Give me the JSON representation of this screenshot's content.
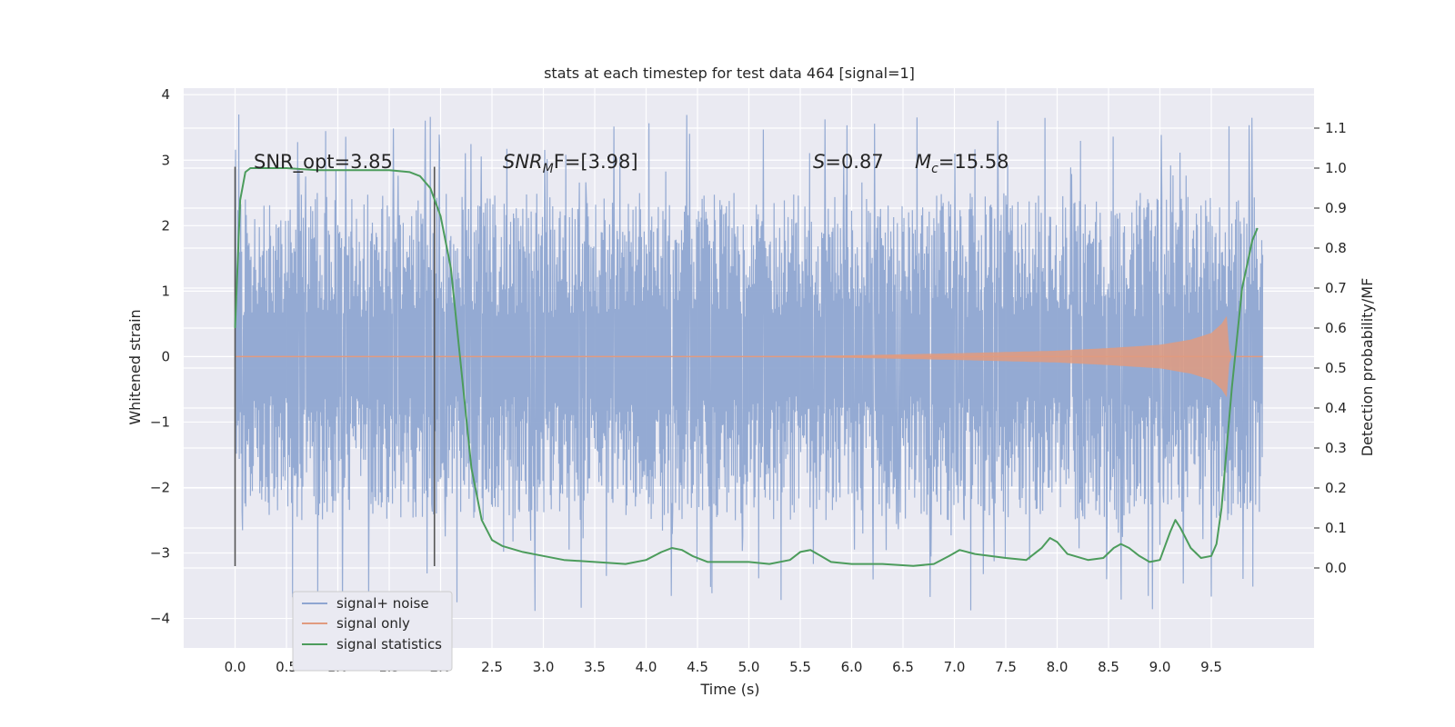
{
  "chart_data": {
    "type": "line",
    "title": "stats at each timestep for test data 464 [signal=1]",
    "xlabel": "Time (s)",
    "ylabel": "Whitened strain",
    "ylabel_right": "Detection probability/MF",
    "xlim": [
      -0.5,
      10.5
    ],
    "ylim": [
      -4.45,
      4.1
    ],
    "ylim_right": [
      -0.2,
      1.2
    ],
    "x_ticks": [
      "0.0",
      "0.5",
      "1.0",
      "1.5",
      "2.0",
      "2.5",
      "3.0",
      "3.5",
      "4.0",
      "4.5",
      "5.0",
      "5.5",
      "6.0",
      "6.5",
      "7.0",
      "7.5",
      "8.0",
      "8.5",
      "9.0",
      "9.5"
    ],
    "y_ticks": [
      "4",
      "3",
      "2",
      "1",
      "0",
      "−1",
      "−2",
      "−3",
      "−4"
    ],
    "y_ticks_right": [
      "1.1",
      "1.0",
      "0.9",
      "0.8",
      "0.7",
      "0.6",
      "0.5",
      "0.4",
      "0.3",
      "0.2",
      "0.1",
      "0.0"
    ],
    "grid": true,
    "legend_position": "bottom-left",
    "annotations": {
      "snr_opt": "SNR_opt=3.85",
      "snr_mf_main": "SNR",
      "snr_mf_sub": "M",
      "snr_mf_rest": "F=[3.98]",
      "s_main": "S",
      "s_rest": "=0.87",
      "mc_main": "M",
      "mc_sub": "c",
      "mc_rest": "=15.58"
    },
    "vertical_lines_x": [
      0.0,
      1.94
    ],
    "series": [
      {
        "name": "signal+ noise",
        "color": "#8fa6d1",
        "x_range": [
          0.0,
          10.0
        ],
        "envelope_top_approx": 2.6,
        "envelope_bottom_approx": -2.2,
        "peak_max_approx": 3.7,
        "peak_min_approx": -3.9
      },
      {
        "name": "signal only",
        "color": "#e19b7f",
        "x": [
          0.0,
          5.0,
          6.0,
          7.0,
          8.0,
          8.5,
          9.0,
          9.3,
          9.5,
          9.6,
          9.65,
          9.68,
          10.0
        ],
        "amplitude": [
          0.0,
          0.0,
          0.02,
          0.05,
          0.09,
          0.13,
          0.18,
          0.26,
          0.36,
          0.5,
          0.62,
          0.0,
          0.0
        ]
      },
      {
        "name": "signal statistics",
        "color": "#4c9c5c",
        "x": [
          0.0,
          0.05,
          0.1,
          0.15,
          0.2,
          0.3,
          0.5,
          0.8,
          1.2,
          1.5,
          1.7,
          1.8,
          1.9,
          2.0,
          2.1,
          2.2,
          2.3,
          2.4,
          2.5,
          2.6,
          2.8,
          3.0,
          3.2,
          3.5,
          3.8,
          4.0,
          4.15,
          4.25,
          4.35,
          4.45,
          4.6,
          4.8,
          5.0,
          5.2,
          5.4,
          5.5,
          5.6,
          5.7,
          5.8,
          6.0,
          6.3,
          6.6,
          6.8,
          6.95,
          7.05,
          7.2,
          7.5,
          7.7,
          7.85,
          7.93,
          8.0,
          8.1,
          8.3,
          8.45,
          8.55,
          8.62,
          8.7,
          8.8,
          8.9,
          9.0,
          9.1,
          9.15,
          9.2,
          9.3,
          9.4,
          9.5,
          9.55,
          9.6,
          9.7,
          9.8,
          9.9,
          9.95
        ],
        "y": [
          0.6,
          0.92,
          0.99,
          1.0,
          1.0,
          1.0,
          1.0,
          0.995,
          0.995,
          0.995,
          0.99,
          0.98,
          0.95,
          0.88,
          0.75,
          0.5,
          0.25,
          0.12,
          0.07,
          0.055,
          0.04,
          0.03,
          0.02,
          0.015,
          0.01,
          0.02,
          0.04,
          0.05,
          0.045,
          0.03,
          0.015,
          0.015,
          0.015,
          0.01,
          0.02,
          0.04,
          0.045,
          0.03,
          0.015,
          0.01,
          0.01,
          0.005,
          0.01,
          0.03,
          0.045,
          0.035,
          0.025,
          0.02,
          0.05,
          0.075,
          0.065,
          0.035,
          0.02,
          0.025,
          0.05,
          0.06,
          0.05,
          0.03,
          0.015,
          0.02,
          0.09,
          0.12,
          0.1,
          0.05,
          0.025,
          0.03,
          0.06,
          0.15,
          0.45,
          0.7,
          0.82,
          0.85
        ]
      }
    ]
  }
}
